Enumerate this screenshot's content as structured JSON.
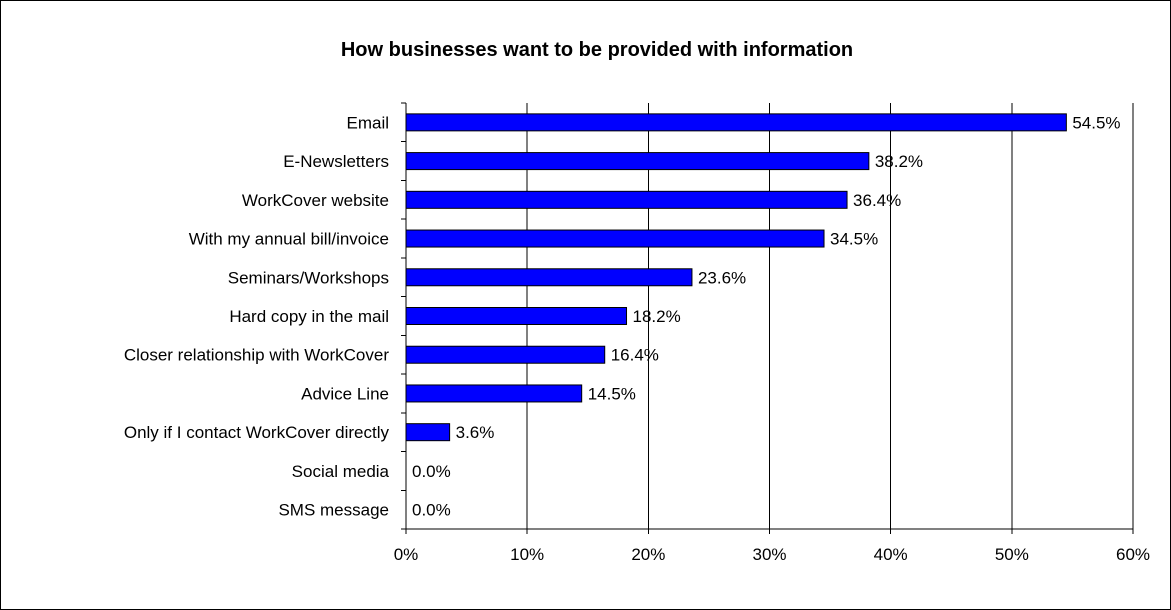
{
  "chart_data": {
    "type": "bar",
    "orientation": "horizontal",
    "title": "How businesses want to be provided with information",
    "categories": [
      "Email",
      "E-Newsletters",
      "WorkCover website",
      "With my annual bill/invoice",
      "Seminars/Workshops",
      "Hard copy in the mail",
      "Closer relationship with WorkCover",
      "Advice Line",
      "Only if I contact WorkCover directly",
      "Social media",
      "SMS message"
    ],
    "values": [
      54.5,
      38.2,
      36.4,
      34.5,
      23.6,
      18.2,
      16.4,
      14.5,
      3.6,
      0.0,
      0.0
    ],
    "data_labels": [
      "54.5%",
      "38.2%",
      "36.4%",
      "34.5%",
      "23.6%",
      "18.2%",
      "16.4%",
      "14.5%",
      "3.6%",
      "0.0%",
      "0.0%"
    ],
    "xlim": [
      0,
      60
    ],
    "x_ticks": [
      0,
      10,
      20,
      30,
      40,
      50,
      60
    ],
    "x_tick_labels": [
      "0%",
      "10%",
      "20%",
      "30%",
      "40%",
      "50%",
      "60%"
    ],
    "grid": "vertical",
    "legend": "none",
    "colors": {
      "bar": "#0000ff",
      "bar_edge": "#000000",
      "grid": "#000000"
    }
  }
}
